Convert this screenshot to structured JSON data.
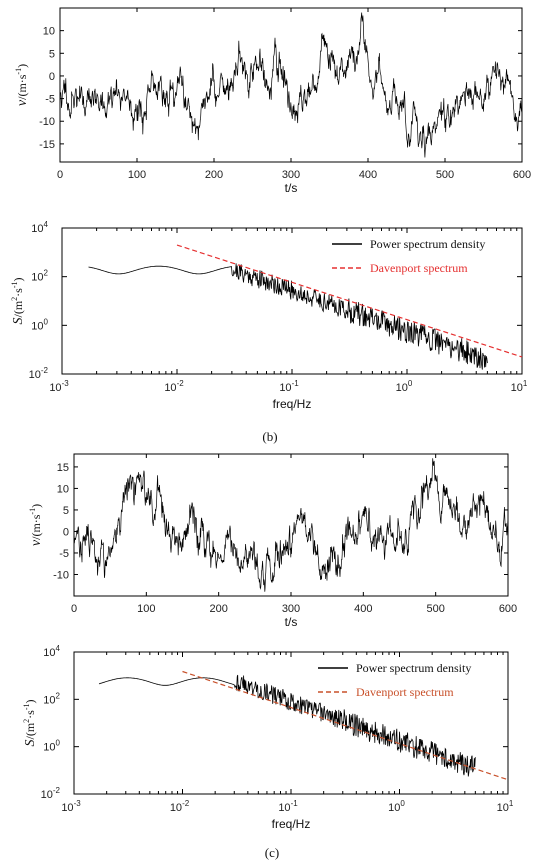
{
  "captions": [
    "(b)",
    "(c)"
  ],
  "colors": {
    "line": "#000000",
    "davenport": "#e53030",
    "davenport_c": "#c8502a",
    "axis": "#000000"
  },
  "chart_data": [
    {
      "id": "b-time",
      "type": "line",
      "xlabel": "t/s",
      "ylabel_prefix": "v",
      "ylabel_unit": "/(m·s",
      "ylabel_exp": "-1",
      "ylabel_close": ")",
      "xlim": [
        0,
        600
      ],
      "ylim": [
        -19,
        15
      ],
      "xticks": [
        0,
        100,
        200,
        300,
        400,
        500,
        600
      ],
      "yticks": [
        -15,
        -10,
        -5,
        0,
        5,
        10
      ],
      "series": [
        {
          "name": "",
          "samples": 600,
          "seed": 11,
          "range": [
            -18,
            14
          ]
        }
      ]
    },
    {
      "id": "b-psd",
      "type": "line",
      "xscale": "log",
      "yscale": "log",
      "xlabel": "freq/Hz",
      "ylabel_prefix": "S",
      "ylabel_unit": "/(m",
      "ylabel_exp": "2",
      "ylabel_mid": "·s",
      "ylabel_exp2": "-1",
      "ylabel_close": ")",
      "xlim": [
        0.001,
        10
      ],
      "ylim": [
        0.01,
        10000
      ],
      "xtick_base": "10",
      "xtick_exps": [
        "-3",
        "-2",
        "-1",
        "0",
        "1"
      ],
      "ytick_exps": [
        "-2",
        "0",
        "2",
        "4"
      ],
      "ytick_values": [
        0.01,
        1,
        100,
        10000
      ],
      "xtick_values": [
        0.001,
        0.01,
        0.1,
        1,
        10
      ],
      "legend": [
        "Power spectrum density",
        "Davenport spectrum"
      ],
      "legend_position": "top-right",
      "series": [
        {
          "name": "Power spectrum density",
          "x_range": [
            0.0017,
            5
          ],
          "low_freq_level": 200,
          "seed": 21
        },
        {
          "name": "Davenport spectrum",
          "dashed": true,
          "points": [
            [
              0.01,
              2000
            ],
            [
              10,
              0.05
            ]
          ]
        }
      ]
    },
    {
      "id": "c-time",
      "type": "line",
      "xlabel": "t/s",
      "ylabel_prefix": "v",
      "ylabel_unit": "/(m·s",
      "ylabel_exp": "-1",
      "ylabel_close": ")",
      "xlim": [
        0,
        600
      ],
      "ylim": [
        -15,
        18
      ],
      "xticks": [
        0,
        100,
        200,
        300,
        400,
        500,
        600
      ],
      "yticks": [
        -10,
        -5,
        0,
        5,
        10,
        15
      ],
      "series": [
        {
          "name": "",
          "samples": 600,
          "seed": 37,
          "range": [
            -14,
            17
          ]
        }
      ]
    },
    {
      "id": "c-psd",
      "type": "line",
      "xscale": "log",
      "yscale": "log",
      "xlabel": "freq/Hz",
      "ylabel_prefix": "S",
      "ylabel_unit": "/(m",
      "ylabel_exp": "2",
      "ylabel_mid": "·s",
      "ylabel_exp2": "-1",
      "ylabel_close": ")",
      "xlim": [
        0.001,
        10
      ],
      "ylim": [
        0.01,
        10000
      ],
      "xtick_base": "10",
      "xtick_exps": [
        "-3",
        "-2",
        "-1",
        "0",
        "1"
      ],
      "ytick_exps": [
        "-2",
        "0",
        "2",
        "4"
      ],
      "ytick_values": [
        0.01,
        1,
        100,
        10000
      ],
      "xtick_values": [
        0.001,
        0.01,
        0.1,
        1,
        10
      ],
      "legend": [
        "Power spectrum density",
        "Davenport spectrum"
      ],
      "legend_position": "top-right",
      "series": [
        {
          "name": "Power spectrum density",
          "x_range": [
            0.0017,
            5
          ],
          "low_freq_level": 600,
          "seed": 43
        },
        {
          "name": "Davenport spectrum",
          "dashed": true,
          "points": [
            [
              0.01,
              1500
            ],
            [
              10,
              0.04
            ]
          ]
        }
      ]
    }
  ]
}
